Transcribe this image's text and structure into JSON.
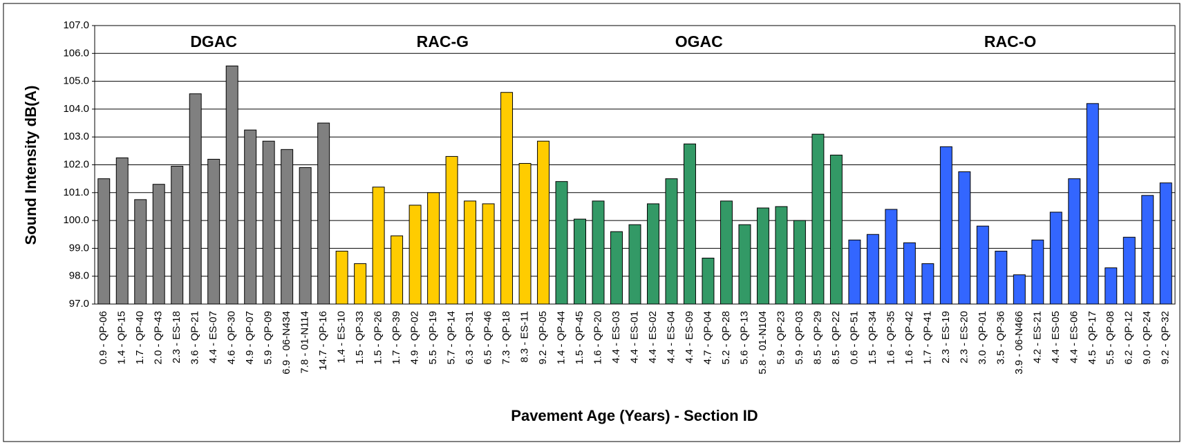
{
  "chart_data": {
    "type": "bar",
    "y_label": "Sound Intensity dB(A)",
    "x_label": "Pavement Age (Years) - Section ID",
    "ylim": [
      97,
      107
    ],
    "yticks": [
      {
        "value": 97,
        "label": "97.0"
      },
      {
        "value": 98,
        "label": "98.0"
      },
      {
        "value": 99,
        "label": "99.0"
      },
      {
        "value": 100,
        "label": "100.0"
      },
      {
        "value": 101,
        "label": "101.0"
      },
      {
        "value": 102,
        "label": "102.0"
      },
      {
        "value": 103,
        "label": "103.0"
      },
      {
        "value": 104,
        "label": "104.0"
      },
      {
        "value": 105,
        "label": "105.0"
      },
      {
        "value": 106,
        "label": "106.0"
      },
      {
        "value": 107,
        "label": "107.0"
      }
    ],
    "grid": true,
    "groups": [
      {
        "name": "DGAC",
        "color": "#808080",
        "categories": [
          "0.9 - QP-06",
          "1.4 - QP-15",
          "1.7 - QP-40",
          "2.0 - QP-43",
          "2.3 - ES-18",
          "3.6 - QP-21",
          "4.4 - ES-07",
          "4.6 - QP-30",
          "4.9 - QP-07",
          "5.9 - QP-09",
          "6.9 - 06-N434",
          "7.8 - 01-N114",
          "14.7 - QP-16"
        ],
        "values": [
          101.5,
          102.25,
          100.75,
          101.3,
          101.95,
          104.55,
          102.2,
          105.55,
          103.25,
          102.85,
          102.55,
          101.9,
          103.5
        ]
      },
      {
        "name": "RAC-G",
        "color": "#ffcc00",
        "categories": [
          "1.4 - ES-10",
          "1.5 - QP-33",
          "1.5 - QP-26",
          "1.7 - QP-39",
          "4.9 - QP-02",
          "5.5 - QP-19",
          "5.7 - QP-14",
          "6.3 - QP-31",
          "6.5 - QP-46",
          "7.3 - QP-18",
          "8.3 - ES-11",
          "9.2 - QP-05"
        ],
        "values": [
          98.9,
          98.45,
          101.2,
          99.45,
          100.55,
          101.0,
          102.3,
          100.7,
          100.6,
          104.6,
          102.05,
          102.85
        ]
      },
      {
        "name": "OGAC",
        "color": "#339966",
        "categories": [
          "1.4 - QP-44",
          "1.5 - QP-45",
          "1.6 - QP-20",
          "4.4 - ES-03",
          "4.4 - ES-01",
          "4.4 - ES-02",
          "4.4 - ES-04",
          "4.4 - ES-09",
          "4.7 - QP-04",
          "5.2 - QP-28",
          "5.6 - QP-13",
          "5.8 - 01-N104",
          "5.9 - QP-23",
          "5.9 - QP-03",
          "8.5 - QP-29",
          "8.5 - QP-22"
        ],
        "values": [
          101.4,
          100.05,
          100.7,
          99.6,
          99.85,
          100.6,
          101.5,
          102.75,
          98.65,
          100.7,
          99.85,
          100.45,
          100.5,
          100.0,
          103.1,
          102.35
        ]
      },
      {
        "name": "RAC-O",
        "color": "#3366ff",
        "categories": [
          "0.6 - QP-51",
          "1.5 - QP-34",
          "1.6 - QP-35",
          "1.6 - QP-42",
          "1.7 - QP-41",
          "2.3 - ES-19",
          "2.3 - ES-20",
          "3.0 - QP-01",
          "3.5 - QP-36",
          "3.9 - 06-N466",
          "4.2 - ES-21",
          "4.4 - ES-05",
          "4.4 - ES-06",
          "4.5 - QP-17",
          "5.5 - QP-08",
          "6.2 - QP-12",
          "9.0 - QP-24",
          "9.2 - QP-32"
        ],
        "values": [
          99.3,
          99.5,
          100.4,
          99.2,
          98.45,
          102.65,
          101.75,
          99.8,
          98.9,
          98.05,
          99.3,
          100.3,
          101.5,
          104.2,
          98.3,
          99.4,
          100.9,
          101.35
        ]
      }
    ]
  }
}
